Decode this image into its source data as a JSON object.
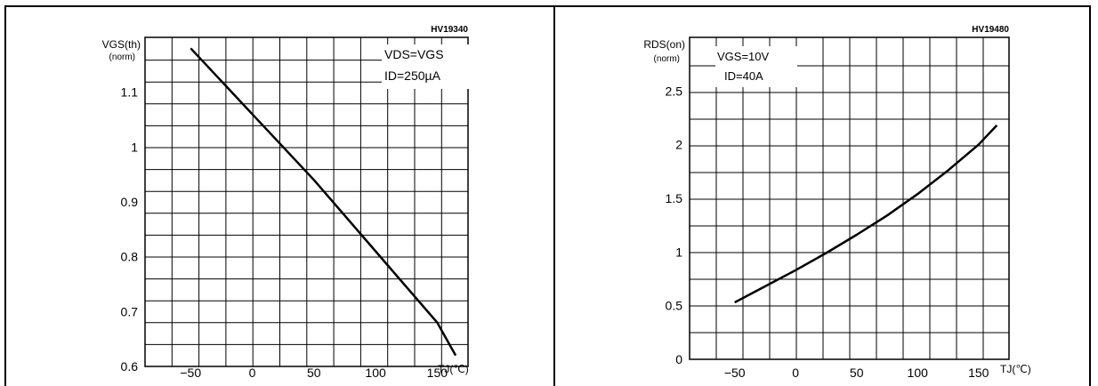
{
  "charts": [
    {
      "ref_code": "HV19340",
      "ylabel_main": "VGS(th)",
      "ylabel_sub": "(norm)",
      "xlabel": "TJ(℃)",
      "annotation_lines": [
        "VDS=VGS",
        "ID=250µA"
      ]
    },
    {
      "ref_code": "HV19480",
      "ylabel_main": "RDS(on)",
      "ylabel_sub": "(norm)",
      "xlabel": "TJ(℃)",
      "annotation_lines": [
        "VGS=10V",
        "ID=40A"
      ]
    }
  ],
  "chart_data": [
    {
      "type": "line",
      "title": "",
      "xlabel": "TJ(℃)",
      "ylabel": "VGS(th) (norm)",
      "xlim": [
        -87,
        175
      ],
      "ylim": [
        0.6,
        1.2
      ],
      "x_ticks": [
        -50,
        0,
        50,
        100,
        150
      ],
      "y_ticks": [
        0.6,
        0.7,
        0.8,
        0.9,
        1,
        1.1
      ],
      "y_tick_labels": [
        "0.6",
        "0.7",
        "0.8",
        "0.9",
        "1",
        "1.1"
      ],
      "grid": true,
      "series": [
        {
          "x": [
            -50,
            0,
            25,
            50,
            75,
            100,
            125,
            150,
            165
          ],
          "y": [
            1.18,
            1.06,
            1.0,
            0.94,
            0.875,
            0.81,
            0.745,
            0.68,
            0.62
          ]
        }
      ]
    },
    {
      "type": "line",
      "title": "",
      "xlabel": "TJ(℃)",
      "ylabel": "RDS(on) (norm)",
      "xlim": [
        -87,
        175
      ],
      "ylim": [
        0,
        3
      ],
      "x_ticks": [
        -50,
        0,
        50,
        100,
        150
      ],
      "y_ticks": [
        0,
        0.5,
        1,
        1.5,
        2,
        2.5
      ],
      "y_tick_labels": [
        "0",
        "0.5",
        "1",
        "1.5",
        "2",
        "2.5"
      ],
      "grid": true,
      "series": [
        {
          "x": [
            -50,
            -25,
            0,
            25,
            50,
            75,
            100,
            125,
            150,
            165
          ],
          "y": [
            0.53,
            0.68,
            0.83,
            0.99,
            1.16,
            1.34,
            1.54,
            1.76,
            2.0,
            2.18
          ]
        }
      ]
    }
  ]
}
